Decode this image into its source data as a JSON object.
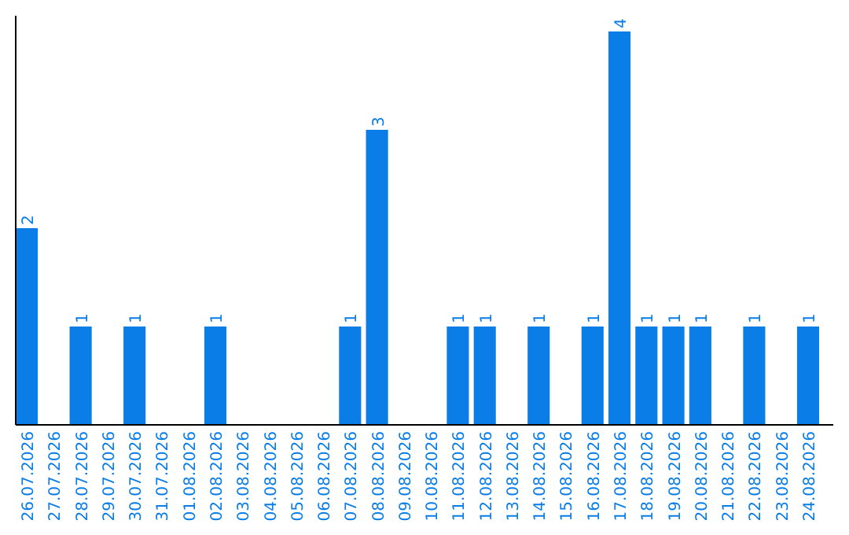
{
  "chart_data": {
    "type": "bar",
    "categories": [
      "26.07.2026",
      "27.07.2026",
      "28.07.2026",
      "29.07.2026",
      "30.07.2026",
      "31.07.2026",
      "01.08.2026",
      "02.08.2026",
      "03.08.2026",
      "04.08.2026",
      "05.08.2026",
      "06.08.2026",
      "07.08.2026",
      "08.08.2026",
      "09.08.2026",
      "10.08.2026",
      "11.08.2026",
      "12.08.2026",
      "13.08.2026",
      "14.08.2026",
      "15.08.2026",
      "16.08.2026",
      "17.08.2026",
      "18.08.2026",
      "19.08.2026",
      "20.08.2026",
      "21.08.2026",
      "22.08.2026",
      "23.08.2026",
      "24.08.2026"
    ],
    "values": [
      2,
      0,
      1,
      0,
      1,
      0,
      0,
      1,
      0,
      0,
      0,
      0,
      1,
      3,
      0,
      0,
      1,
      1,
      0,
      1,
      0,
      1,
      4,
      1,
      1,
      1,
      0,
      1,
      0,
      1
    ],
    "value_labels": [
      "2",
      null,
      "1",
      null,
      "1",
      null,
      null,
      "1",
      null,
      null,
      null,
      null,
      "1",
      "3",
      null,
      null,
      "1",
      "1",
      null,
      "1",
      null,
      "1",
      "4",
      "1",
      "1",
      "1",
      null,
      "1",
      null,
      "1"
    ],
    "color": "#0a7de6"
  }
}
